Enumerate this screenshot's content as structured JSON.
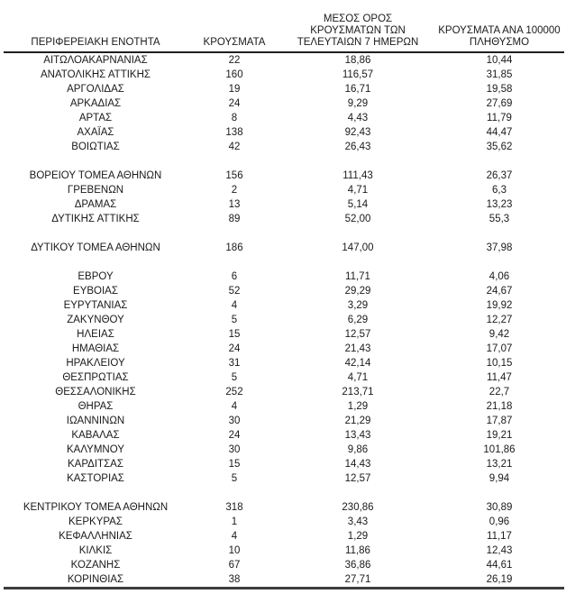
{
  "table": {
    "headers": [
      "ΠΕΡΙΦΕΡΕΙΑΚΗ ΕΝΟΤΗΤΑ",
      "ΚΡΟΥΣΜΑΤΑ",
      "ΜΕΣΟΣ ΟΡΟΣ\nΚΡΟΥΣΜΑΤΩΝ ΤΩΝ\nΤΕΛΕΥΤΑΙΩΝ 7 ΗΜΕΡΩΝ",
      "ΚΡΟΥΣΜΑΤΑ ΑΝΑ 100000\nΠΛΗΘΥΣΜΟ"
    ],
    "rows": [
      [
        "ΑΙΤΩΛΟΑΚΑΡΝΑΝΙΑΣ",
        "22",
        "18,86",
        "10,44"
      ],
      [
        "ΑΝΑΤΟΛΙΚΗΣ ΑΤΤΙΚΗΣ",
        "160",
        "116,57",
        "31,85"
      ],
      [
        "ΑΡΓΟΛΙΔΑΣ",
        "19",
        "16,71",
        "19,58"
      ],
      [
        "ΑΡΚΑΔΙΑΣ",
        "24",
        "9,29",
        "27,69"
      ],
      [
        "ΑΡΤΑΣ",
        "8",
        "4,43",
        "11,79"
      ],
      [
        "ΑΧΑΪΑΣ",
        "138",
        "92,43",
        "44,47"
      ],
      [
        "ΒΟΙΩΤΙΑΣ",
        "42",
        "26,43",
        "35,62"
      ],
      [],
      [
        "ΒΟΡΕΙΟΥ ΤΟΜΕΑ ΑΘΗΝΩΝ",
        "156",
        "111,43",
        "26,37"
      ],
      [
        "ΓΡΕΒΕΝΩΝ",
        "2",
        "4,71",
        "6,3"
      ],
      [
        "ΔΡΑΜΑΣ",
        "13",
        "5,14",
        "13,23"
      ],
      [
        "ΔΥΤΙΚΗΣ ΑΤΤΙΚΗΣ",
        "89",
        "52,00",
        "55,3"
      ],
      [],
      [
        "ΔΥΤΙΚΟΥ ΤΟΜΕΑ ΑΘΗΝΩΝ",
        "186",
        "147,00",
        "37,98"
      ],
      [],
      [
        "ΕΒΡΟΥ",
        "6",
        "11,71",
        "4,06"
      ],
      [
        "ΕΥΒΟΙΑΣ",
        "52",
        "29,29",
        "24,67"
      ],
      [
        "ΕΥΡΥΤΑΝΙΑΣ",
        "4",
        "3,29",
        "19,92"
      ],
      [
        "ΖΑΚΥΝΘΟΥ",
        "5",
        "6,29",
        "12,27"
      ],
      [
        "ΗΛΕΙΑΣ",
        "15",
        "12,57",
        "9,42"
      ],
      [
        "ΗΜΑΘΙΑΣ",
        "24",
        "21,43",
        "17,07"
      ],
      [
        "ΗΡΑΚΛΕΙΟΥ",
        "31",
        "42,14",
        "10,15"
      ],
      [
        "ΘΕΣΠΡΩΤΙΑΣ",
        "5",
        "4,71",
        "11,47"
      ],
      [
        "ΘΕΣΣΑΛΟΝΙΚΗΣ",
        "252",
        "213,71",
        "22,7"
      ],
      [
        "ΘΗΡΑΣ",
        "4",
        "1,29",
        "21,18"
      ],
      [
        "ΙΩΑΝΝΙΝΩΝ",
        "30",
        "21,29",
        "17,87"
      ],
      [
        "ΚΑΒΑΛΑΣ",
        "24",
        "13,43",
        "19,21"
      ],
      [
        "ΚΑΛΥΜΝΟΥ",
        "30",
        "9,86",
        "101,86"
      ],
      [
        "ΚΑΡΔΙΤΣΑΣ",
        "15",
        "14,43",
        "13,21"
      ],
      [
        "ΚΑΣΤΟΡΙΑΣ",
        "5",
        "12,57",
        "9,94"
      ],
      [],
      [
        "ΚΕΝΤΡΙΚΟΥ ΤΟΜΕΑ ΑΘΗΝΩΝ",
        "318",
        "230,86",
        "30,89"
      ],
      [
        "ΚΕΡΚΥΡΑΣ",
        "1",
        "3,43",
        "0,96"
      ],
      [
        "ΚΕΦΑΛΛΗΝΙΑΣ",
        "4",
        "1,29",
        "11,17"
      ],
      [
        "ΚΙΛΚΙΣ",
        "10",
        "11,86",
        "12,43"
      ],
      [
        "ΚΟΖΑΝΗΣ",
        "67",
        "36,86",
        "44,61"
      ],
      [
        "ΚΟΡΙΝΘΙΑΣ",
        "38",
        "27,71",
        "26,19"
      ]
    ],
    "colors": {
      "text": "#1a1a1a",
      "header_rule": "#1f1f1f",
      "bottom_rule": "#3d3d3d",
      "background": "#ffffff"
    }
  }
}
